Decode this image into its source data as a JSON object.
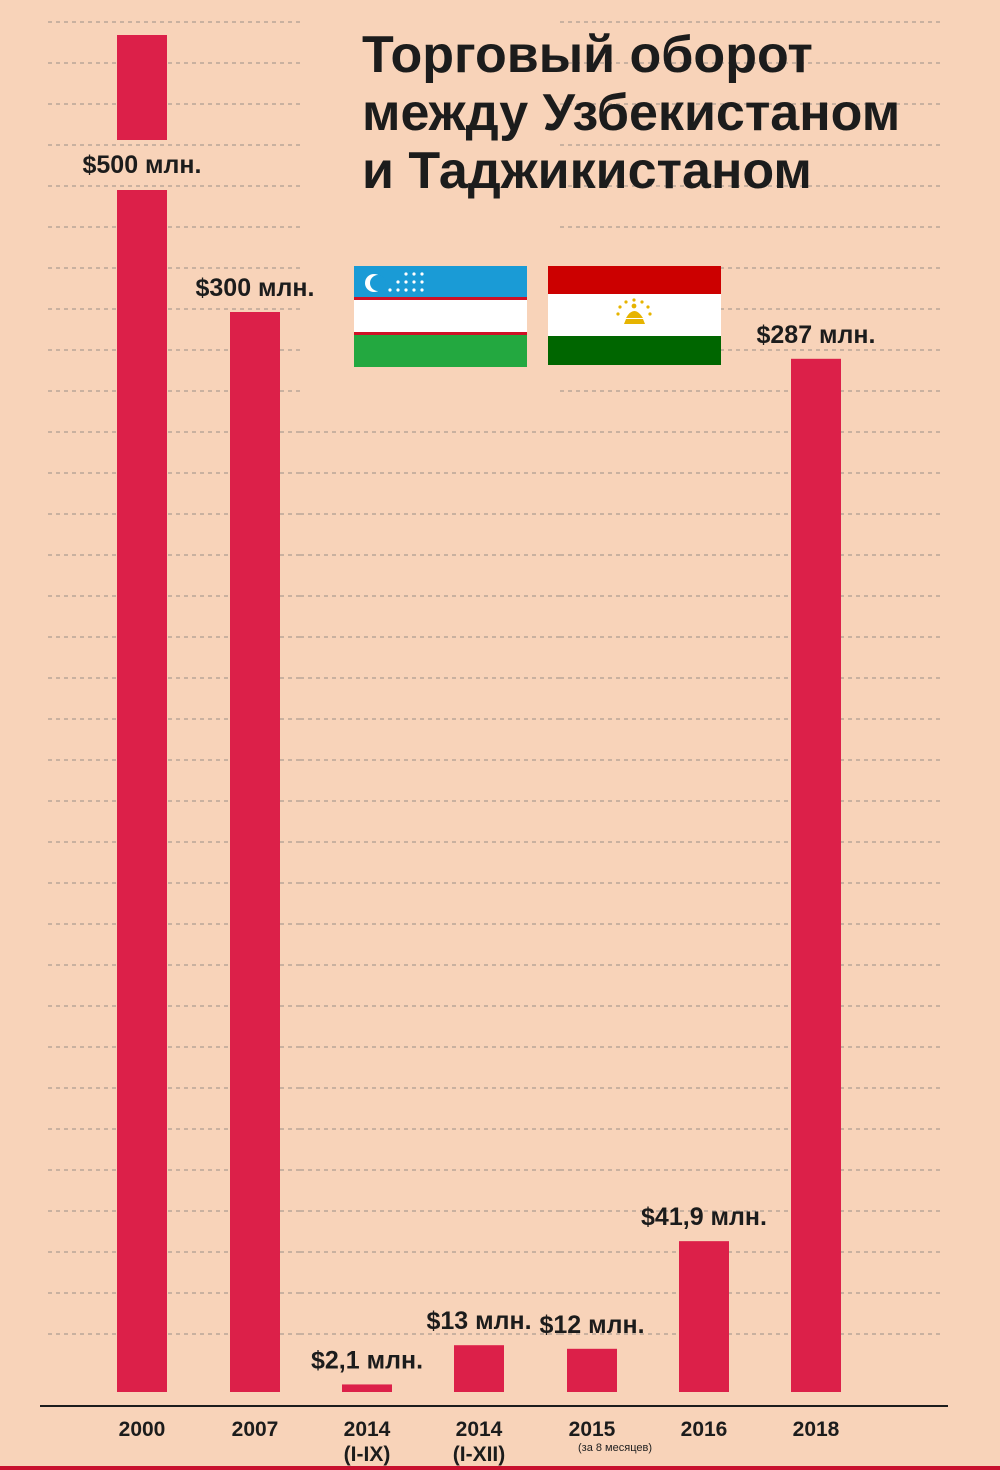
{
  "title": {
    "line1": "Торговый оборот",
    "line2": "между Узбекистаном",
    "line3": "и Таджикистаном"
  },
  "footnote": "(за 8 месяцев)",
  "colors": {
    "background": "#f8d3b9",
    "bar": "#dc2049",
    "grid": "#9a8f88",
    "text": "#1c1c1c",
    "footer_line": "#c8102e"
  },
  "flags": {
    "uzbekistan": {
      "name": "uzbekistan-flag",
      "colors": [
        "#1a9bd6",
        "#ffffff",
        "#23a840",
        "#ce1126"
      ]
    },
    "tajikistan": {
      "name": "tajikistan-flag",
      "colors": [
        "#cc0000",
        "#ffffff",
        "#006600",
        "#f8c300"
      ]
    }
  },
  "chart_data": {
    "type": "bar",
    "title": "Торговый оборот между Узбекистаном и Таджикистаном",
    "categories": [
      "2000",
      "2007",
      "2014",
      "2014",
      "2015",
      "2016",
      "2018"
    ],
    "category_sublabels": [
      "",
      "",
      "(I-IX)",
      "(I-XII)",
      "",
      "",
      ""
    ],
    "values": [
      500,
      300,
      2.1,
      13,
      12,
      41.9,
      287
    ],
    "value_labels": [
      "$500 млн.",
      "$300 млн.",
      "$2,1 млн.",
      "$13 млн.",
      "$12 млн.",
      "$41,9 млн.",
      "$287 млн."
    ],
    "unit": "млн. $",
    "axis_break": true,
    "grid": true,
    "legend": "none"
  }
}
